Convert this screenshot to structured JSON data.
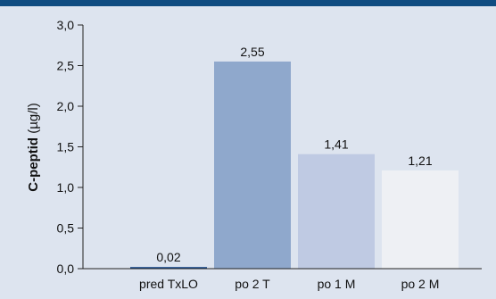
{
  "chart_data": {
    "type": "bar",
    "title": "",
    "xlabel": "",
    "ylabel_bold": "C-peptid",
    "ylabel_unit": " (µg/l)",
    "categories": [
      "pred TxLO",
      "po 2 T",
      "po 1 M",
      "po 2 M"
    ],
    "values": [
      0.02,
      2.55,
      1.41,
      1.21
    ],
    "value_labels": [
      "0,02",
      "2,55",
      "1,41",
      "1,21"
    ],
    "ylim": [
      0,
      3.0
    ],
    "y_ticks": [
      0,
      0.5,
      1.0,
      1.5,
      2.0,
      2.5,
      3.0
    ],
    "y_tick_labels": [
      "0,0",
      "0,5",
      "1,0",
      "1,5",
      "2,0",
      "2,5",
      "3,0"
    ],
    "grid": false,
    "legend": "none",
    "bar_colors": [
      "#1d4d8f",
      "#8fa8cc",
      "#bfcae3",
      "#eef0f4"
    ]
  },
  "colors": {
    "background": "#dde4ef",
    "top_bar": "#0f4c81",
    "axis": "#222222"
  }
}
